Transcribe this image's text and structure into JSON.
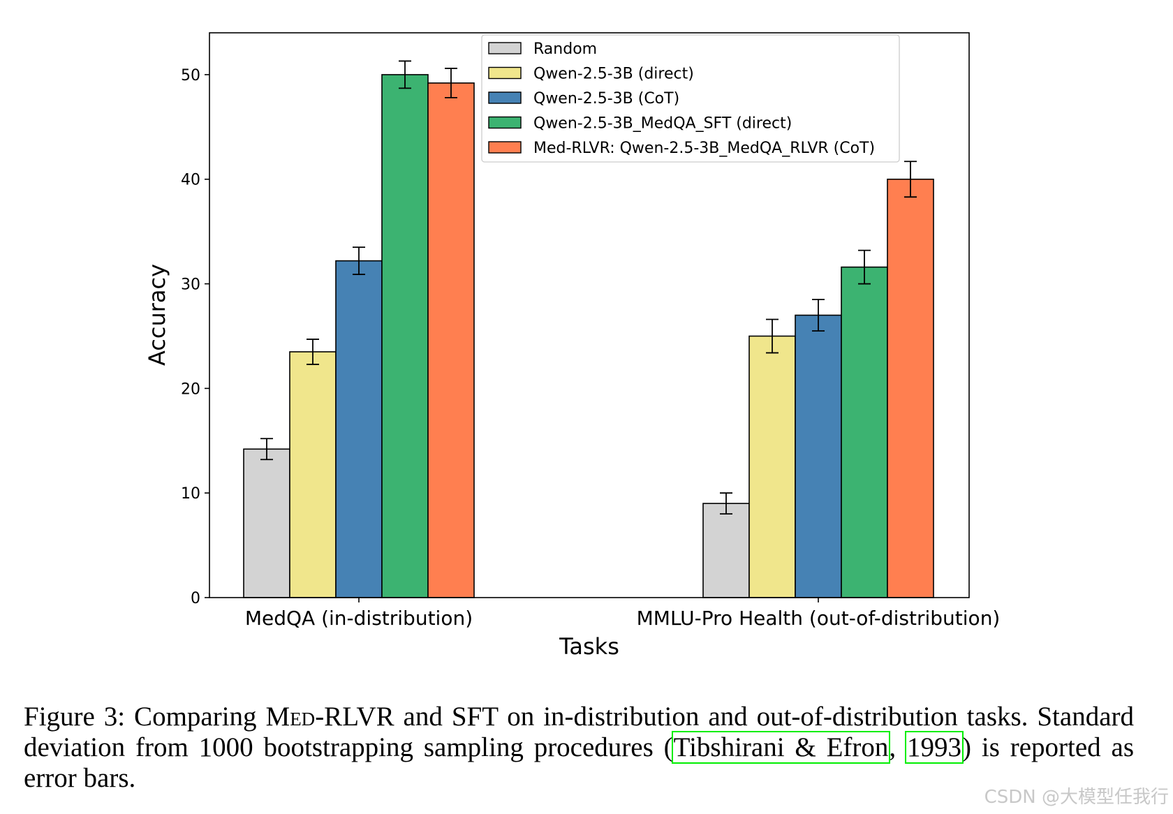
{
  "chart_data": {
    "type": "bar",
    "xlabel": "Tasks",
    "ylabel": "Accuracy",
    "ylim": [
      0,
      54
    ],
    "yticks": [
      0,
      10,
      20,
      30,
      40,
      50
    ],
    "categories": [
      "MedQA (in-distribution)",
      "MMLU-Pro Health (out-of-distribution)"
    ],
    "legend_position": "top-right",
    "series": [
      {
        "name": "Random",
        "color": "#d3d3d3",
        "values": [
          14.2,
          9.0
        ],
        "errors": [
          1.0,
          1.0
        ]
      },
      {
        "name": "Qwen-2.5-3B (direct)",
        "color": "#f0e68c",
        "values": [
          23.5,
          25.0
        ],
        "errors": [
          1.2,
          1.6
        ]
      },
      {
        "name": "Qwen-2.5-3B (CoT)",
        "color": "#4682b4",
        "values": [
          32.2,
          27.0
        ],
        "errors": [
          1.3,
          1.5
        ]
      },
      {
        "name": "Qwen-2.5-3B_MedQA_SFT (direct)",
        "color": "#3cb371",
        "values": [
          50.0,
          31.6
        ],
        "errors": [
          1.3,
          1.6
        ]
      },
      {
        "name": "Med-RLVR: Qwen-2.5-3B_MedQA_RLVR (CoT)",
        "color": "#ff7f50",
        "values": [
          49.2,
          40.0
        ],
        "errors": [
          1.4,
          1.7
        ]
      }
    ]
  },
  "caption": {
    "label": "Figure 3: Comparing ",
    "method_first": "M",
    "method_sc": "ed",
    "method_rest": "-RLVR and SFT on in-distribution and out-of-distribution tasks. Standard deviation from 1000 bootstrapping sampling procedures (",
    "cite_authors": "Tibshirani & Efron",
    "cite_sep": ", ",
    "cite_year": "1993",
    "tail": ") is reported as error bars."
  },
  "watermark": "CSDN @大模型任我行"
}
